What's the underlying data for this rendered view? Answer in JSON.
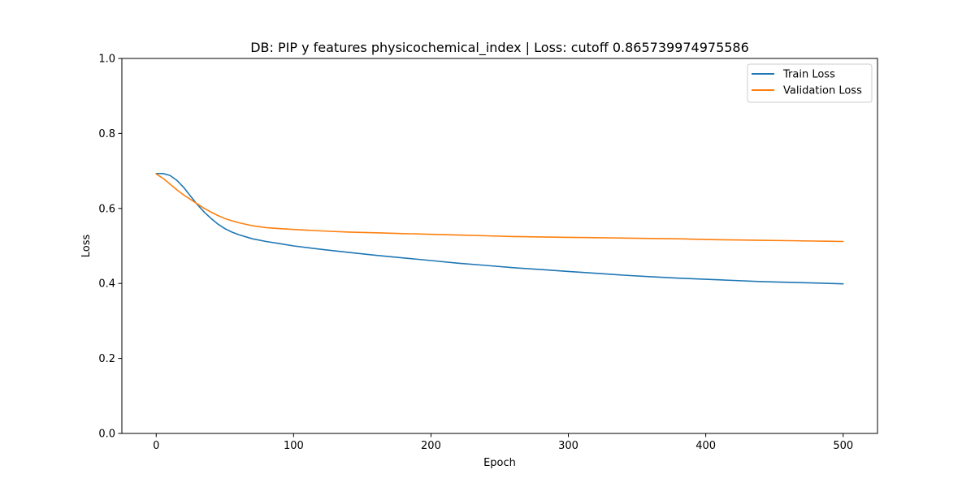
{
  "chart_data": {
    "type": "line",
    "title": "DB: PIP y features physicochemical_index | Loss: cutoff 0.865739974975586",
    "xlabel": "Epoch",
    "ylabel": "Loss",
    "xlim": [
      -25,
      525
    ],
    "ylim": [
      0.0,
      1.0
    ],
    "xticks": [
      0,
      100,
      200,
      300,
      400,
      500
    ],
    "yticks": [
      0.0,
      0.2,
      0.4,
      0.6,
      0.8,
      1.0
    ],
    "ytick_labels": [
      "0.0",
      "0.2",
      "0.4",
      "0.6",
      "0.8",
      "1.0"
    ],
    "grid": false,
    "legend_position": "top-right",
    "series": [
      {
        "name": "Train Loss",
        "color": "#1f77b4",
        "x": [
          0,
          5,
          10,
          15,
          20,
          25,
          30,
          35,
          40,
          45,
          50,
          55,
          60,
          70,
          80,
          90,
          100,
          120,
          140,
          160,
          180,
          200,
          220,
          240,
          260,
          280,
          300,
          320,
          340,
          360,
          380,
          400,
          420,
          440,
          460,
          480,
          500
        ],
        "y": [
          0.693,
          0.693,
          0.688,
          0.675,
          0.656,
          0.633,
          0.61,
          0.59,
          0.573,
          0.558,
          0.546,
          0.537,
          0.53,
          0.519,
          0.512,
          0.506,
          0.5,
          0.491,
          0.483,
          0.475,
          0.468,
          0.461,
          0.454,
          0.448,
          0.442,
          0.437,
          0.432,
          0.427,
          0.422,
          0.418,
          0.414,
          0.411,
          0.408,
          0.405,
          0.403,
          0.401,
          0.399
        ]
      },
      {
        "name": "Validation Loss",
        "color": "#ff7f0e",
        "x": [
          0,
          5,
          10,
          15,
          20,
          25,
          30,
          35,
          40,
          45,
          50,
          55,
          60,
          70,
          80,
          90,
          100,
          120,
          140,
          160,
          180,
          200,
          220,
          240,
          260,
          280,
          300,
          320,
          340,
          360,
          380,
          400,
          420,
          440,
          460,
          480,
          500
        ],
        "y": [
          0.692,
          0.68,
          0.665,
          0.65,
          0.636,
          0.624,
          0.612,
          0.6,
          0.59,
          0.581,
          0.573,
          0.567,
          0.562,
          0.554,
          0.549,
          0.546,
          0.544,
          0.54,
          0.537,
          0.535,
          0.533,
          0.531,
          0.529,
          0.527,
          0.525,
          0.524,
          0.523,
          0.522,
          0.521,
          0.52,
          0.519,
          0.517,
          0.516,
          0.515,
          0.514,
          0.513,
          0.512
        ]
      }
    ]
  }
}
